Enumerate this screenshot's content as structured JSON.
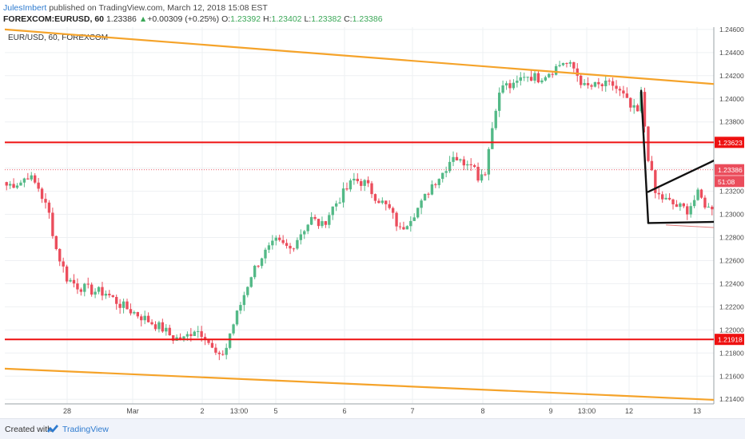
{
  "header": {
    "author": "JulesImbert",
    "published_text": " published on TradingView.com, March 12, 2018 15:08 EST",
    "symbol": "FOREXCOM:EURUSD, 60",
    "last": "1.23386",
    "change_arrow": "▲",
    "change": "+0.00309 (+0.25%)",
    "o_label": "O:",
    "o_value": "1.23392",
    "h_label": "H:",
    "h_value": "1.23402",
    "l_label": "L:",
    "l_value": "1.23382",
    "c_label": "C:",
    "c_value": "1.23386"
  },
  "chart_label": "EUR/USD, 60, FOREXCOM",
  "footer": {
    "created_with": "Created with",
    "brand": "TradingView",
    "logo_icon": "tradingview-logo-icon"
  },
  "colors": {
    "up": "#53b987",
    "down": "#eb4d5c",
    "orange": "#f5a32a",
    "red_line": "#ee1111",
    "black_line": "#111111",
    "grid": "#eef0f3"
  },
  "chart_data": {
    "type": "candlestick",
    "ylim": [
      1.2136,
      1.2462
    ],
    "y_ticks": [
      "1.24600",
      "1.24400",
      "1.24200",
      "1.24000",
      "1.23800",
      "1.23600",
      "1.23400",
      "1.23200",
      "1.23000",
      "1.22800",
      "1.22600",
      "1.22400",
      "1.22200",
      "1.22000",
      "1.21800",
      "1.21600",
      "1.21400"
    ],
    "x_ticks": [
      "28",
      "Mar",
      "2",
      "13:00",
      "5",
      "6",
      "7",
      "8",
      "9",
      "13:00",
      "12",
      "13"
    ],
    "price_labels": [
      {
        "text": "1.23623",
        "value": 1.23623,
        "color": "#ee1111"
      },
      {
        "text": "1.23386",
        "value": 1.23386,
        "color": "#eb4d5c"
      },
      {
        "text": "51:08",
        "value": 1.23285,
        "color": "#eb4d5c"
      },
      {
        "text": "1.21918",
        "value": 1.21918,
        "color": "#ee1111"
      }
    ],
    "horizontal_levels": [
      1.23623,
      1.21918
    ],
    "last_price": 1.23386,
    "path_bars": 200,
    "close_path": [
      [
        0,
        1.2325
      ],
      [
        4,
        1.2328
      ],
      [
        6,
        1.2334
      ],
      [
        9,
        1.2323
      ],
      [
        12,
        1.23
      ],
      [
        14,
        1.227
      ],
      [
        17,
        1.2245
      ],
      [
        20,
        1.2238
      ],
      [
        24,
        1.2234
      ],
      [
        28,
        1.2232
      ],
      [
        32,
        1.2222
      ],
      [
        36,
        1.2215
      ],
      [
        40,
        1.2208
      ],
      [
        44,
        1.2201
      ],
      [
        47,
        1.2193
      ],
      [
        50,
        1.2192
      ],
      [
        53,
        1.2201
      ],
      [
        56,
        1.2196
      ],
      [
        58,
        1.2183
      ],
      [
        60,
        1.2175
      ],
      [
        62,
        1.2185
      ],
      [
        63,
        1.2197
      ],
      [
        66,
        1.2222
      ],
      [
        69,
        1.2248
      ],
      [
        72,
        1.2264
      ],
      [
        76,
        1.2276
      ],
      [
        80,
        1.227
      ],
      [
        83,
        1.2284
      ],
      [
        86,
        1.2296
      ],
      [
        89,
        1.229
      ],
      [
        92,
        1.2306
      ],
      [
        96,
        1.2322
      ],
      [
        98,
        1.233
      ],
      [
        101,
        1.2327
      ],
      [
        104,
        1.2316
      ],
      [
        108,
        1.2304
      ],
      [
        111,
        1.2286
      ],
      [
        114,
        1.2298
      ],
      [
        117,
        1.2309
      ],
      [
        120,
        1.2326
      ],
      [
        123,
        1.2336
      ],
      [
        126,
        1.2352
      ],
      [
        128,
        1.2345
      ],
      [
        131,
        1.2347
      ],
      [
        133,
        1.2333
      ],
      [
        135,
        1.2338
      ],
      [
        138,
        1.2394
      ],
      [
        140,
        1.2412
      ],
      [
        143,
        1.241
      ],
      [
        146,
        1.2421
      ],
      [
        150,
        1.2418
      ],
      [
        154,
        1.2425
      ],
      [
        157,
        1.2432
      ],
      [
        160,
        1.2426
      ],
      [
        163,
        1.241
      ],
      [
        167,
        1.2411
      ],
      [
        171,
        1.2412
      ],
      [
        174,
        1.2402
      ],
      [
        176,
        1.2392
      ],
      [
        178,
        1.2388
      ],
      [
        179,
        1.2403
      ],
      [
        181,
        1.235
      ],
      [
        183,
        1.2318
      ],
      [
        186,
        1.2312
      ],
      [
        189,
        1.2307
      ],
      [
        192,
        1.2304
      ],
      [
        195,
        1.2317
      ],
      [
        198,
        1.2305
      ],
      [
        201,
        1.2312
      ],
      [
        204,
        1.232
      ],
      [
        207,
        1.2308
      ],
      [
        210,
        1.2312
      ],
      [
        213,
        1.2317
      ],
      [
        216,
        1.2326
      ],
      [
        219,
        1.2312
      ],
      [
        222,
        1.2303
      ],
      [
        225,
        1.2321
      ],
      [
        228,
        1.2332
      ],
      [
        230,
        1.23386
      ]
    ],
    "trendlines": [
      {
        "name": "orange-resistance",
        "color": "#f5a32a",
        "from": {
          "bar": 0,
          "price": 1.246
        },
        "to": {
          "bar": 999,
          "price": 1.24128
        }
      },
      {
        "name": "orange-support",
        "color": "#f5a32a",
        "from": {
          "bar": 0,
          "price": 1.21665
        },
        "to": {
          "bar": 999,
          "price": 1.21395
        }
      },
      {
        "name": "black-upper",
        "color": "#111111",
        "from": {
          "bar": 181,
          "price": 1.23195
        },
        "to": {
          "bar": 999,
          "price": 1.23465
        }
      },
      {
        "name": "black-lower",
        "color": "#111111",
        "from": {
          "bar": 181,
          "price": 1.22925
        },
        "to": {
          "bar": 999,
          "price": 1.22935
        }
      },
      {
        "name": "black-drop",
        "color": "#111111",
        "from": {
          "bar": 179,
          "price": 1.2407
        },
        "to": {
          "bar": 181,
          "price": 1.22925
        }
      }
    ]
  }
}
